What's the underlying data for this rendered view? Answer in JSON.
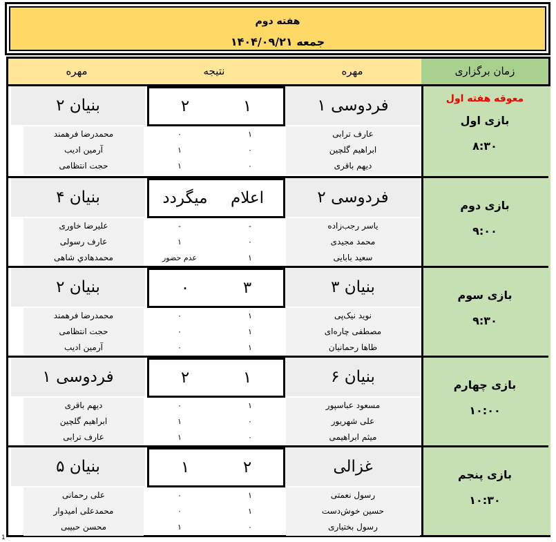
{
  "header": {
    "title": "هفته دوم",
    "date": "جمعه ۱۴۰۴/۰۹/۲۱"
  },
  "columns": {
    "left_team": "مهره",
    "result": "نتیجه",
    "right_team": "مهره",
    "time": "زمان برگزاری"
  },
  "matches": [
    {
      "round_note": "معوقه هفته اول",
      "round": "بازی اول",
      "time": "۸:۳۰",
      "right_team": "فردوسی ۱",
      "left_team": "بنیان ۲",
      "right_score": "۱",
      "left_score": "۲",
      "right_players": [
        "عارف ترابی",
        "ابراهیم گلچین",
        "دیهم باقری"
      ],
      "right_player_scores": [
        "۱",
        "۰",
        "۰"
      ],
      "left_players": [
        "محمدرضا فرهمند",
        "آرمین ادیب",
        "حجت انتظامی"
      ],
      "left_player_scores": [
        "۰",
        "۱",
        "۱"
      ]
    },
    {
      "round_note": "",
      "round": "بازی دوم",
      "time": "۹:۰۰",
      "right_team": "فردوسی ۲",
      "left_team": "بنیان ۴",
      "right_score": "اعلام",
      "left_score": "میگردد",
      "right_players": [
        "یاسر رجب‌زاده",
        "محمد مجیدی",
        "سعید بابایی"
      ],
      "right_player_scores": [
        "-",
        "۰",
        "۱"
      ],
      "left_players": [
        "علیرضا خاوری",
        "عارف رسولی",
        "محمدهادي شاهی"
      ],
      "left_player_scores": [
        "-",
        "۱",
        "عدم حضور"
      ]
    },
    {
      "round_note": "",
      "round": "بازی سوم",
      "time": "۹:۳۰",
      "right_team": "بنیان ۳",
      "left_team": "بنیان ۲",
      "right_score": "۳",
      "left_score": "۰",
      "right_players": [
        "نوید نیک‌پی",
        "مصطفی چاره‌ای",
        "طاها رحمانیان"
      ],
      "right_player_scores": [
        "۱",
        "۱",
        "۱"
      ],
      "left_players": [
        "محمدرضا فرهمند",
        "حجت انتظامی",
        "آرمین ادیب"
      ],
      "left_player_scores": [
        "۰",
        "۰",
        "۰"
      ]
    },
    {
      "round_note": "",
      "round": "بازی چهارم",
      "time": "۱۰:۰۰",
      "right_team": "بنیان ۶",
      "left_team": "فردوسی ۱",
      "right_score": "۱",
      "left_score": "۲",
      "right_players": [
        "مسعود عباسپور",
        "علی شهریور",
        "میثم ابراهیمی"
      ],
      "right_player_scores": [
        "۱",
        "۰",
        "۰"
      ],
      "left_players": [
        "دیهم باقری",
        "ابراهیم گلچین",
        "عارف ترابی"
      ],
      "left_player_scores": [
        "۰",
        "۱",
        "۱"
      ]
    },
    {
      "round_note": "",
      "round": "بازی پنجم",
      "time": "۱۰:۳۰",
      "right_team": "غزالی",
      "left_team": "بنیان ۵",
      "right_score": "۲",
      "left_score": "۱",
      "right_players": [
        "رسول نعمتی",
        "حسین خوش‌دست",
        "رسول بختیاری"
      ],
      "right_player_scores": [
        "۱",
        "۱",
        "۰"
      ],
      "left_players": [
        "علی رحمانی",
        "محمدعلی امیدوار",
        "محسن حبیبی"
      ],
      "left_player_scores": [
        "۰",
        "۰",
        "۱"
      ]
    }
  ],
  "page_number": "1"
}
